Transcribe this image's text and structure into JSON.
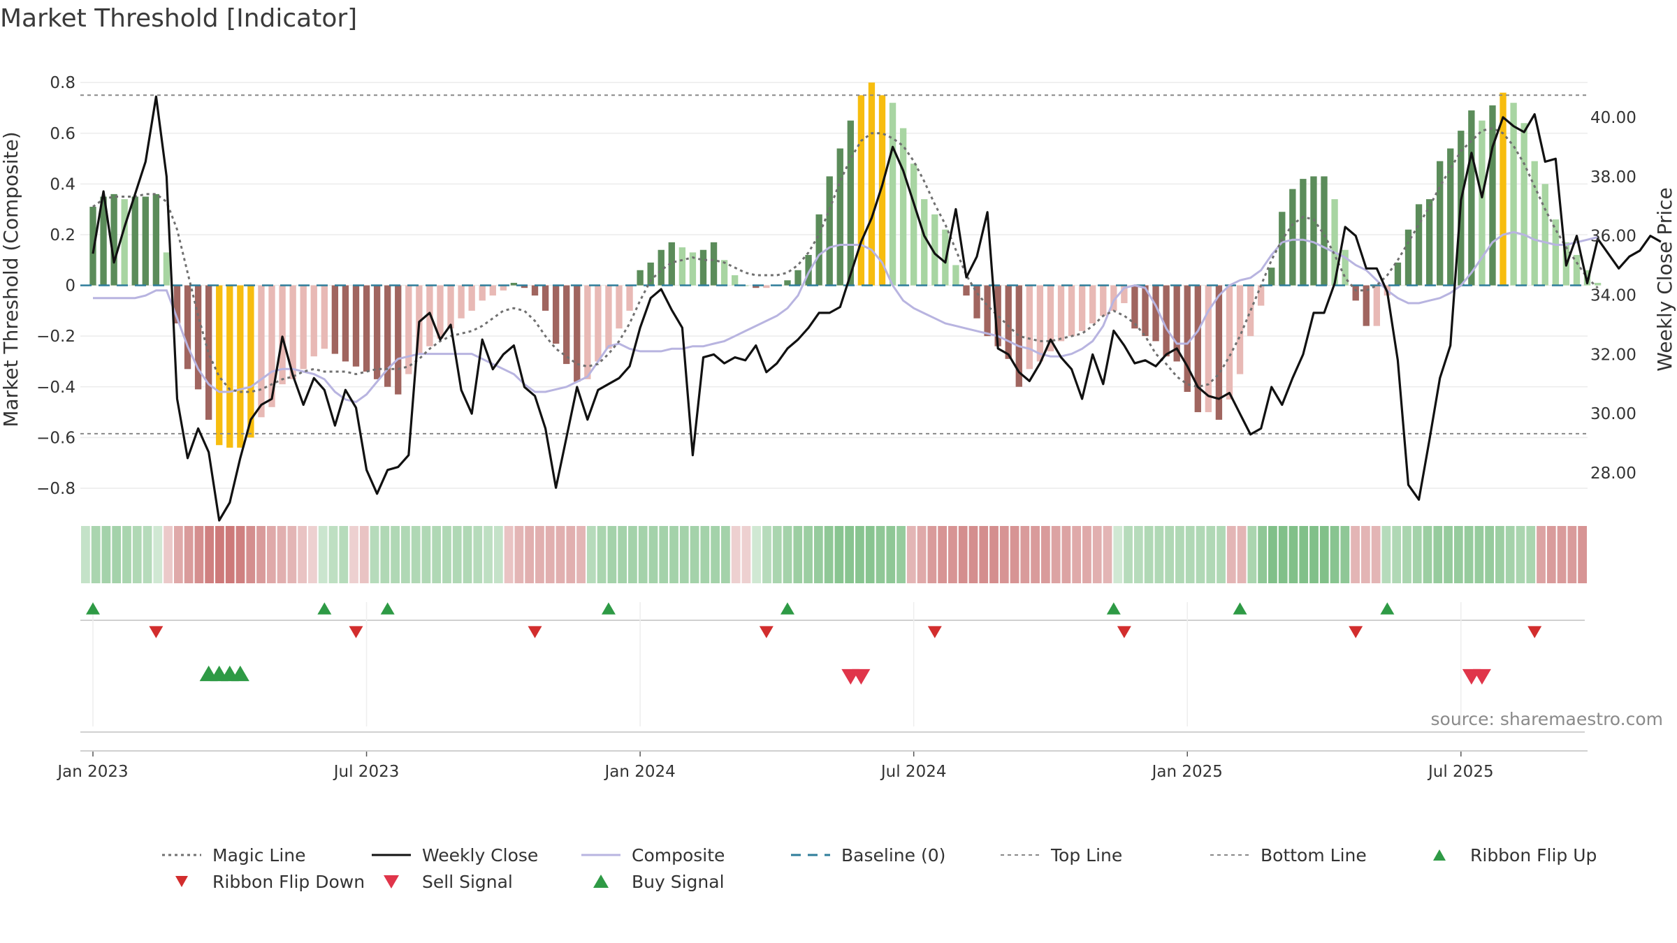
{
  "chart_data": {
    "type": "bar",
    "title": "Market Threshold [Indicator]",
    "ylabel_left": "Market Threshold (Composite)",
    "ylabel_right": "Weekly Close Price",
    "source": "source: sharemaestro.com",
    "left_ticks": [
      "0.8",
      "0.6",
      "0.4",
      "0.2",
      "0",
      "−0.2",
      "−0.4",
      "−0.6",
      "−0.8"
    ],
    "left_tick_values": [
      0.8,
      0.6,
      0.4,
      0.2,
      0,
      -0.2,
      -0.4,
      -0.6,
      -0.8
    ],
    "right_ticks": [
      "40.00",
      "38.00",
      "36.00",
      "34.00",
      "32.00",
      "30.00",
      "28.00"
    ],
    "right_tick_values": [
      40,
      38,
      36,
      34,
      32,
      30,
      28
    ],
    "x_ticks": [
      "Jan 2023",
      "Jul 2023",
      "Jan 2024",
      "Jul 2024",
      "Jan 2025",
      "Jul 2025"
    ],
    "x_tick_weeks": [
      0,
      26,
      52,
      78,
      104,
      130
    ],
    "ylim_left": [
      -0.88,
      0.85
    ],
    "ylim_right": [
      26.8,
      41.6
    ],
    "top_line": 0.75,
    "bottom_line": -0.585,
    "composite_bars": [
      0.31,
      0.35,
      0.36,
      0.34,
      0.35,
      0.35,
      0.36,
      0.13,
      -0.15,
      -0.33,
      -0.41,
      -0.53,
      -0.63,
      -0.64,
      -0.64,
      -0.6,
      -0.52,
      -0.48,
      -0.39,
      -0.37,
      -0.33,
      -0.28,
      -0.25,
      -0.27,
      -0.3,
      -0.32,
      -0.34,
      -0.37,
      -0.4,
      -0.43,
      -0.35,
      -0.27,
      -0.24,
      -0.21,
      -0.17,
      -0.13,
      -0.1,
      -0.06,
      -0.04,
      -0.02,
      0.01,
      -0.01,
      -0.04,
      -0.1,
      -0.23,
      -0.31,
      -0.38,
      -0.37,
      -0.3,
      -0.25,
      -0.17,
      -0.1,
      0.06,
      0.09,
      0.14,
      0.17,
      0.15,
      0.13,
      0.14,
      0.17,
      0.1,
      0.04,
      0.0,
      -0.01,
      -0.01,
      0.0,
      0.02,
      0.06,
      0.12,
      0.28,
      0.43,
      0.54,
      0.65,
      0.75,
      0.8,
      0.75,
      0.72,
      0.62,
      0.48,
      0.34,
      0.28,
      0.22,
      0.08,
      -0.04,
      -0.13,
      -0.2,
      -0.24,
      -0.29,
      -0.4,
      -0.33,
      -0.3,
      -0.26,
      -0.22,
      -0.2,
      -0.18,
      -0.15,
      -0.12,
      -0.1,
      -0.07,
      -0.17,
      -0.2,
      -0.22,
      -0.28,
      -0.3,
      -0.42,
      -0.5,
      -0.5,
      -0.53,
      -0.45,
      -0.35,
      -0.2,
      -0.08,
      0.07,
      0.29,
      0.38,
      0.42,
      0.43,
      0.43,
      0.34,
      0.14,
      -0.06,
      -0.16,
      -0.16,
      -0.04,
      0.09,
      0.22,
      0.32,
      0.34,
      0.49,
      0.54,
      0.61,
      0.69,
      0.65,
      0.71,
      0.76,
      0.72,
      0.64,
      0.49,
      0.4,
      0.26,
      0.17,
      0.12,
      0.06,
      0.01
    ],
    "weekly_close": [
      35.4,
      37.5,
      35.1,
      36.3,
      37.4,
      38.5,
      40.7,
      38.0,
      30.5,
      28.5,
      29.5,
      28.7,
      26.4,
      27.0,
      28.5,
      29.8,
      30.3,
      30.5,
      32.6,
      31.3,
      30.3,
      31.2,
      30.8,
      29.6,
      30.8,
      30.2,
      28.1,
      27.3,
      28.1,
      28.2,
      28.6,
      33.1,
      33.4,
      32.5,
      33.0,
      30.8,
      30.0,
      32.5,
      31.5,
      32.0,
      32.3,
      30.9,
      30.6,
      29.5,
      27.5,
      29.2,
      30.9,
      29.8,
      30.8,
      31.0,
      31.2,
      31.6,
      32.9,
      33.9,
      34.2,
      33.5,
      32.9,
      28.6,
      31.9,
      32.0,
      31.7,
      31.9,
      31.8,
      32.3,
      31.4,
      31.7,
      32.2,
      32.5,
      32.9,
      33.4,
      33.4,
      33.6,
      34.7,
      35.8,
      36.6,
      37.7,
      39.0,
      38.2,
      37.1,
      36.0,
      35.4,
      35.1,
      36.9,
      34.6,
      35.3,
      36.8,
      32.2,
      32.0,
      31.4,
      31.1,
      31.7,
      32.5,
      31.9,
      31.5,
      30.5,
      32.0,
      31.0,
      32.8,
      32.3,
      31.7,
      31.8,
      31.6,
      32.0,
      32.2,
      31.6,
      30.9,
      30.6,
      30.5,
      30.7,
      30.0,
      29.3,
      29.5,
      30.9,
      30.3,
      31.2,
      32.0,
      33.4,
      33.4,
      34.4,
      36.3,
      36.0,
      34.9,
      34.9,
      34.1,
      31.8,
      27.6,
      27.1,
      29.1,
      31.2,
      32.3,
      37.2,
      38.8,
      37.3,
      39.0,
      40.0,
      39.7,
      39.5,
      40.1,
      38.5,
      38.6,
      35.0,
      36.0,
      34.4,
      35.9,
      35.4,
      34.9,
      35.3,
      35.5,
      36.0,
      35.8
    ],
    "magic_line": [
      0.31,
      0.34,
      0.35,
      0.35,
      0.35,
      0.36,
      0.36,
      0.33,
      0.22,
      0.05,
      -0.12,
      -0.27,
      -0.36,
      -0.41,
      -0.42,
      -0.42,
      -0.41,
      -0.39,
      -0.37,
      -0.36,
      -0.34,
      -0.33,
      -0.34,
      -0.34,
      -0.34,
      -0.35,
      -0.34,
      -0.33,
      -0.33,
      -0.33,
      -0.32,
      -0.29,
      -0.25,
      -0.22,
      -0.2,
      -0.19,
      -0.18,
      -0.16,
      -0.13,
      -0.1,
      -0.09,
      -0.1,
      -0.14,
      -0.2,
      -0.25,
      -0.28,
      -0.31,
      -0.32,
      -0.31,
      -0.27,
      -0.22,
      -0.15,
      -0.06,
      0.02,
      0.06,
      0.09,
      0.1,
      0.11,
      0.1,
      0.1,
      0.09,
      0.07,
      0.05,
      0.04,
      0.04,
      0.04,
      0.05,
      0.08,
      0.13,
      0.2,
      0.3,
      0.41,
      0.5,
      0.57,
      0.6,
      0.6,
      0.58,
      0.55,
      0.49,
      0.41,
      0.32,
      0.24,
      0.14,
      0.04,
      -0.03,
      -0.08,
      -0.12,
      -0.16,
      -0.2,
      -0.21,
      -0.22,
      -0.22,
      -0.21,
      -0.2,
      -0.19,
      -0.16,
      -0.12,
      -0.1,
      -0.12,
      -0.15,
      -0.2,
      -0.27,
      -0.31,
      -0.36,
      -0.39,
      -0.4,
      -0.39,
      -0.35,
      -0.28,
      -0.2,
      -0.1,
      0.0,
      0.1,
      0.18,
      0.24,
      0.27,
      0.26,
      0.2,
      0.12,
      0.03,
      -0.02,
      -0.02,
      0.0,
      0.04,
      0.1,
      0.17,
      0.24,
      0.31,
      0.39,
      0.46,
      0.53,
      0.57,
      0.61,
      0.62,
      0.6,
      0.55,
      0.48,
      0.39,
      0.3,
      0.22,
      0.15,
      0.09,
      0.03,
      -0.01
    ],
    "composite_line": [
      -0.05,
      -0.05,
      -0.05,
      -0.05,
      -0.05,
      -0.04,
      -0.02,
      -0.02,
      -0.13,
      -0.24,
      -0.33,
      -0.39,
      -0.42,
      -0.42,
      -0.41,
      -0.4,
      -0.37,
      -0.34,
      -0.33,
      -0.33,
      -0.34,
      -0.35,
      -0.37,
      -0.42,
      -0.45,
      -0.46,
      -0.43,
      -0.38,
      -0.33,
      -0.29,
      -0.28,
      -0.27,
      -0.27,
      -0.27,
      -0.27,
      -0.27,
      -0.27,
      -0.29,
      -0.31,
      -0.33,
      -0.35,
      -0.39,
      -0.42,
      -0.42,
      -0.41,
      -0.4,
      -0.38,
      -0.36,
      -0.3,
      -0.24,
      -0.23,
      -0.25,
      -0.26,
      -0.26,
      -0.26,
      -0.25,
      -0.25,
      -0.24,
      -0.24,
      -0.23,
      -0.22,
      -0.2,
      -0.18,
      -0.16,
      -0.14,
      -0.12,
      -0.09,
      -0.04,
      0.05,
      0.12,
      0.15,
      0.16,
      0.16,
      0.16,
      0.14,
      0.09,
      0.0,
      -0.06,
      -0.09,
      -0.11,
      -0.13,
      -0.15,
      -0.16,
      -0.17,
      -0.18,
      -0.19,
      -0.2,
      -0.22,
      -0.24,
      -0.25,
      -0.27,
      -0.28,
      -0.28,
      -0.27,
      -0.25,
      -0.22,
      -0.16,
      -0.06,
      -0.01,
      0.0,
      -0.01,
      -0.08,
      -0.17,
      -0.23,
      -0.23,
      -0.18,
      -0.1,
      -0.04,
      0.0,
      0.02,
      0.03,
      0.06,
      0.12,
      0.17,
      0.18,
      0.18,
      0.17,
      0.15,
      0.13,
      0.11,
      0.08,
      0.06,
      0.02,
      -0.02,
      -0.05,
      -0.07,
      -0.07,
      -0.06,
      -0.05,
      -0.03,
      0.0,
      0.05,
      0.11,
      0.17,
      0.2,
      0.21,
      0.2,
      0.18,
      0.17,
      0.16,
      0.16,
      0.17,
      0.18,
      0.19
    ],
    "ribbon_strength": [
      0.2,
      0.4,
      0.45,
      0.45,
      0.4,
      0.35,
      0.3,
      0.1,
      -0.15,
      -0.4,
      -0.5,
      -0.6,
      -0.7,
      -0.75,
      -0.75,
      -0.7,
      -0.6,
      -0.5,
      -0.4,
      -0.35,
      -0.3,
      -0.2,
      -0.1,
      0.15,
      0.25,
      0.3,
      -0.1,
      -0.2,
      0.3,
      0.35,
      0.35,
      0.35,
      0.35,
      0.35,
      0.35,
      0.35,
      0.35,
      0.35,
      0.3,
      0.25,
      0.2,
      -0.2,
      -0.3,
      -0.35,
      -0.35,
      -0.35,
      -0.35,
      -0.35,
      -0.3,
      0.3,
      0.4,
      0.45,
      0.45,
      0.45,
      0.45,
      0.45,
      0.45,
      0.45,
      0.45,
      0.45,
      0.45,
      0.45,
      0.45,
      -0.1,
      -0.1,
      0.1,
      0.3,
      0.4,
      0.45,
      0.5,
      0.5,
      0.55,
      0.6,
      0.65,
      0.65,
      0.65,
      0.65,
      0.6,
      0.6,
      0.55,
      -0.3,
      -0.4,
      -0.5,
      -0.55,
      -0.55,
      -0.6,
      -0.6,
      -0.6,
      -0.6,
      -0.55,
      -0.55,
      -0.5,
      -0.5,
      -0.5,
      -0.45,
      -0.45,
      -0.4,
      -0.4,
      -0.35,
      -0.3,
      0.1,
      0.3,
      0.3,
      0.35,
      0.35,
      0.35,
      0.35,
      0.35,
      0.35,
      0.35,
      0.35,
      -0.3,
      -0.3,
      0.4,
      0.6,
      0.7,
      0.7,
      0.7,
      0.7,
      0.7,
      0.7,
      0.65,
      0.6,
      -0.3,
      -0.3,
      -0.3,
      0.3,
      0.35,
      0.4,
      0.45,
      0.5,
      0.55,
      0.55,
      0.55,
      0.55,
      0.55,
      0.55,
      0.5,
      0.45,
      0.4,
      0.4,
      -0.45,
      -0.5,
      -0.5,
      -0.5,
      -0.55
    ],
    "ribbon_flip_up_weeks": [
      0,
      22,
      28,
      49,
      66,
      97,
      109,
      123
    ],
    "ribbon_flip_down_weeks": [
      6,
      25,
      42,
      64,
      80,
      98,
      120,
      137
    ],
    "buy_signal_weeks": [
      11,
      12,
      13,
      14
    ],
    "sell_signal_weeks": [
      72,
      73,
      131,
      132
    ],
    "legend": [
      "Magic Line",
      "Weekly Close",
      "Composite",
      "Baseline (0)",
      "Top Line",
      "Bottom Line",
      "Ribbon Flip Up",
      "Ribbon Flip Down",
      "Sell Signal",
      "Buy Signal"
    ],
    "colors": {
      "pos_strong": "#5b8c5a",
      "pos_light": "#a8d5a2",
      "neg_strong": "#a0655f",
      "neg_light": "#e8b9b5",
      "extreme": "#f7bd0f",
      "close": "#111111",
      "magic": "#707070",
      "composite": "#b8b4e0",
      "baseline": "#2e7d9a",
      "flip_up": "#2e9a45",
      "flip_down": "#d22d2d",
      "buy": "#2e9a45",
      "sell": "#e0354a"
    }
  }
}
